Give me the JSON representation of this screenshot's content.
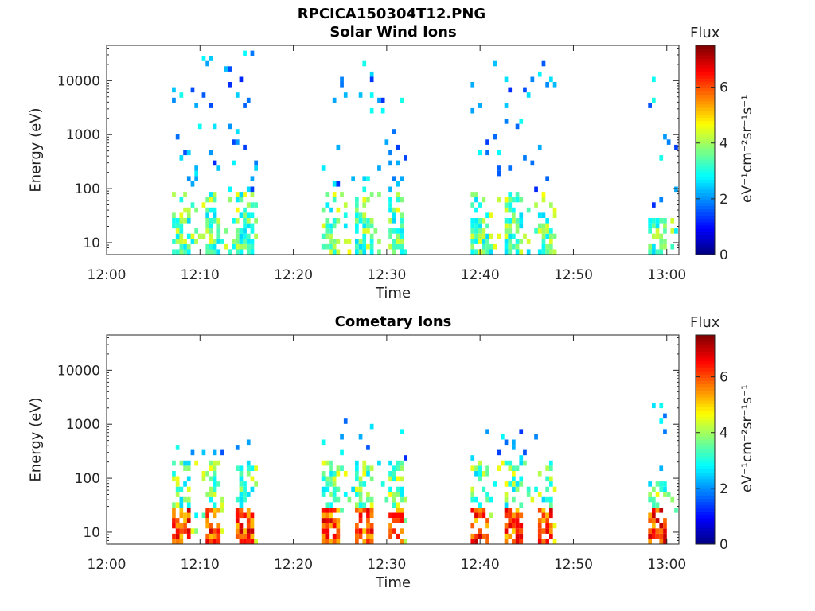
{
  "figure": {
    "title": "RPCICA150304T12.PNG"
  },
  "chart_data": [
    {
      "type": "heatmap",
      "title": "Solar Wind Ions",
      "xlabel": "Time",
      "ylabel": "Energy (eV)",
      "x_ticks": [
        "12:00",
        "12:10",
        "12:20",
        "12:30",
        "12:40",
        "12:50",
        "13:00"
      ],
      "y_ticks": [
        "10",
        "100",
        "1000",
        "10000"
      ],
      "y_scale": "log",
      "ylim": [
        6,
        45000
      ],
      "colorbar": {
        "title": "Flux",
        "label": "eV⁻¹cm⁻²sr⁻¹s⁻¹",
        "ticks": [
          "0",
          "2",
          "4",
          "6"
        ],
        "range": [
          0,
          7.5
        ],
        "colormap": "jet"
      },
      "activity_windows": [
        {
          "start": "12:07",
          "end": "12:16",
          "dense_energy_max_eV": 80,
          "sparse_energy_max_eV": 35000
        },
        {
          "start": "12:23",
          "end": "12:32",
          "dense_energy_max_eV": 80,
          "sparse_energy_max_eV": 30000
        },
        {
          "start": "12:39",
          "end": "12:48",
          "dense_energy_max_eV": 80,
          "sparse_energy_max_eV": 23000
        },
        {
          "start": "12:58",
          "end": "13:01",
          "dense_energy_max_eV": 30,
          "sparse_energy_max_eV": 18000
        }
      ],
      "peak_flux": 4.5,
      "peak_energy_band_eV": [
        6,
        30
      ]
    },
    {
      "type": "heatmap",
      "title": "Cometary Ions",
      "xlabel": "Time",
      "ylabel": "Energy (eV)",
      "x_ticks": [
        "12:00",
        "12:10",
        "12:20",
        "12:30",
        "12:40",
        "12:50",
        "13:00"
      ],
      "y_ticks": [
        "10",
        "100",
        "1000",
        "10000"
      ],
      "y_scale": "log",
      "ylim": [
        6,
        45000
      ],
      "colorbar": {
        "title": "Flux",
        "label": "eV⁻¹cm⁻²sr⁻¹s⁻¹",
        "ticks": [
          "0",
          "2",
          "4",
          "6"
        ],
        "range": [
          0,
          7.5
        ],
        "colormap": "jet"
      },
      "activity_windows": [
        {
          "start": "12:07",
          "end": "12:16",
          "dense_energy_max_eV": 200,
          "sparse_energy_max_eV": 500
        },
        {
          "start": "12:23",
          "end": "12:32",
          "dense_energy_max_eV": 200,
          "sparse_energy_max_eV": 1200
        },
        {
          "start": "12:39",
          "end": "12:48",
          "dense_energy_max_eV": 200,
          "sparse_energy_max_eV": 1200
        },
        {
          "start": "12:58",
          "end": "13:01",
          "dense_energy_max_eV": 80,
          "sparse_energy_max_eV": 3000
        }
      ],
      "peak_flux": 7.0,
      "peak_energy_band_eV": [
        6,
        30
      ]
    }
  ]
}
